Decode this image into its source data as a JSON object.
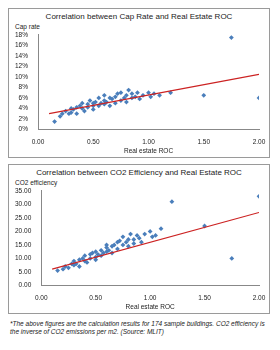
{
  "chart_data": [
    {
      "type": "scatter",
      "title": "Correlation between Cap Rate and Real Estate ROC",
      "y_label": "Cap rate",
      "x_label": "Real estate ROC",
      "xlim": [
        0,
        2
      ],
      "xticks": [
        {
          "value": 0,
          "label": "0.00"
        },
        {
          "value": 0.5,
          "label": "0.50"
        },
        {
          "value": 1,
          "label": "1.00"
        },
        {
          "value": 1.5,
          "label": "1.50"
        },
        {
          "value": 2,
          "label": "2.00"
        }
      ],
      "ylim": [
        0,
        18
      ],
      "yticks": [
        {
          "value": 0,
          "label": "0%"
        },
        {
          "value": 2,
          "label": "2%"
        },
        {
          "value": 4,
          "label": "4%"
        },
        {
          "value": 6,
          "label": "6%"
        },
        {
          "value": 8,
          "label": "8%"
        },
        {
          "value": 10,
          "label": "10%"
        },
        {
          "value": 12,
          "label": "12%"
        },
        {
          "value": 14,
          "label": "14%"
        },
        {
          "value": 16,
          "label": "16%"
        },
        {
          "value": 18,
          "label": "18%"
        }
      ],
      "grid": false,
      "series": [
        {
          "type": "scatter",
          "color": "#4a7ebb",
          "marker": "diamond",
          "x": [
            0.15,
            0.2,
            0.22,
            0.25,
            0.28,
            0.3,
            0.3,
            0.32,
            0.35,
            0.35,
            0.38,
            0.4,
            0.4,
            0.42,
            0.45,
            0.45,
            0.47,
            0.5,
            0.5,
            0.5,
            0.52,
            0.55,
            0.55,
            0.57,
            0.6,
            0.6,
            0.6,
            0.62,
            0.65,
            0.65,
            0.67,
            0.7,
            0.7,
            0.72,
            0.75,
            0.75,
            0.78,
            0.8,
            0.8,
            0.82,
            0.85,
            0.85,
            0.88,
            0.9,
            0.92,
            0.95,
            1.0,
            1.02,
            1.05,
            1.1,
            1.2,
            1.5,
            1.75,
            2.0
          ],
          "values": [
            1.5,
            2.5,
            3.0,
            3.5,
            3.0,
            4.0,
            3.2,
            3.8,
            4.2,
            3.0,
            4.5,
            4.0,
            5.0,
            3.5,
            4.8,
            4.2,
            5.5,
            4.5,
            5.0,
            3.8,
            5.2,
            6.0,
            4.5,
            5.0,
            5.5,
            4.8,
            6.5,
            5.2,
            6.0,
            4.5,
            5.8,
            6.2,
            5.0,
            6.8,
            5.5,
            7.0,
            6.0,
            6.5,
            5.2,
            7.5,
            6.0,
            6.8,
            6.2,
            7.0,
            5.8,
            6.5,
            7.0,
            6.2,
            6.8,
            6.5,
            7.0,
            6.5,
            17.5,
            6.0
          ]
        },
        {
          "type": "line",
          "color": "#cc2222",
          "line_style": "solid",
          "x": [
            0.1,
            2.0
          ],
          "values": [
            3.0,
            10.5
          ]
        }
      ]
    },
    {
      "type": "scatter",
      "title": "Correlation between CO2 Efficiency and Real Estate ROC",
      "y_label": "CO2 efficiency",
      "x_label": "Real estate ROC",
      "xlim": [
        0,
        2
      ],
      "xticks": [
        {
          "value": 0,
          "label": "0.00"
        },
        {
          "value": 0.5,
          "label": "0.50"
        },
        {
          "value": 1,
          "label": "1.00"
        },
        {
          "value": 1.5,
          "label": "1.50"
        },
        {
          "value": 2,
          "label": "2.00"
        }
      ],
      "ylim": [
        0,
        35
      ],
      "yticks": [
        {
          "value": 0,
          "label": "0.00"
        },
        {
          "value": 5,
          "label": "5.00"
        },
        {
          "value": 10,
          "label": "10.00"
        },
        {
          "value": 15,
          "label": "15.00"
        },
        {
          "value": 20,
          "label": "20.00"
        },
        {
          "value": 25,
          "label": "25.00"
        },
        {
          "value": 30,
          "label": "30.00"
        },
        {
          "value": 35,
          "label": "35.00"
        }
      ],
      "grid": false,
      "series": [
        {
          "type": "scatter",
          "color": "#4a7ebb",
          "marker": "diamond",
          "x": [
            0.15,
            0.2,
            0.22,
            0.25,
            0.28,
            0.3,
            0.3,
            0.32,
            0.35,
            0.35,
            0.38,
            0.4,
            0.4,
            0.42,
            0.45,
            0.45,
            0.47,
            0.5,
            0.5,
            0.5,
            0.52,
            0.55,
            0.55,
            0.57,
            0.6,
            0.6,
            0.6,
            0.62,
            0.65,
            0.65,
            0.67,
            0.7,
            0.7,
            0.72,
            0.75,
            0.75,
            0.78,
            0.8,
            0.8,
            0.82,
            0.85,
            0.85,
            0.88,
            0.9,
            0.92,
            0.95,
            1.0,
            1.02,
            1.05,
            1.1,
            1.2,
            1.5,
            1.75,
            2.0
          ],
          "values": [
            5.5,
            6.0,
            7.0,
            6.5,
            8.0,
            7.5,
            9.0,
            8.0,
            9.5,
            7.0,
            10.0,
            9.0,
            11.0,
            8.5,
            11.5,
            10.0,
            12.0,
            10.5,
            12.5,
            9.5,
            11.5,
            13.0,
            11.0,
            12.0,
            14.0,
            12.5,
            15.0,
            13.0,
            14.5,
            12.0,
            15.0,
            16.0,
            13.5,
            16.5,
            15.0,
            18.0,
            16.0,
            17.0,
            14.5,
            19.0,
            17.0,
            15.5,
            18.5,
            17.5,
            16.0,
            19.0,
            20.0,
            18.0,
            18.5,
            21.0,
            31.0,
            22.0,
            10.0,
            33.0
          ]
        },
        {
          "type": "line",
          "color": "#cc2222",
          "line_style": "solid",
          "x": [
            0.1,
            2.0
          ],
          "values": [
            6.0,
            27.0
          ]
        }
      ]
    }
  ],
  "footnote": "*The above figures are the calculation results for 174 sample buildings. CO2 efficiency is the inverse of CO2 emissions per m2. (Source: MLIT)"
}
